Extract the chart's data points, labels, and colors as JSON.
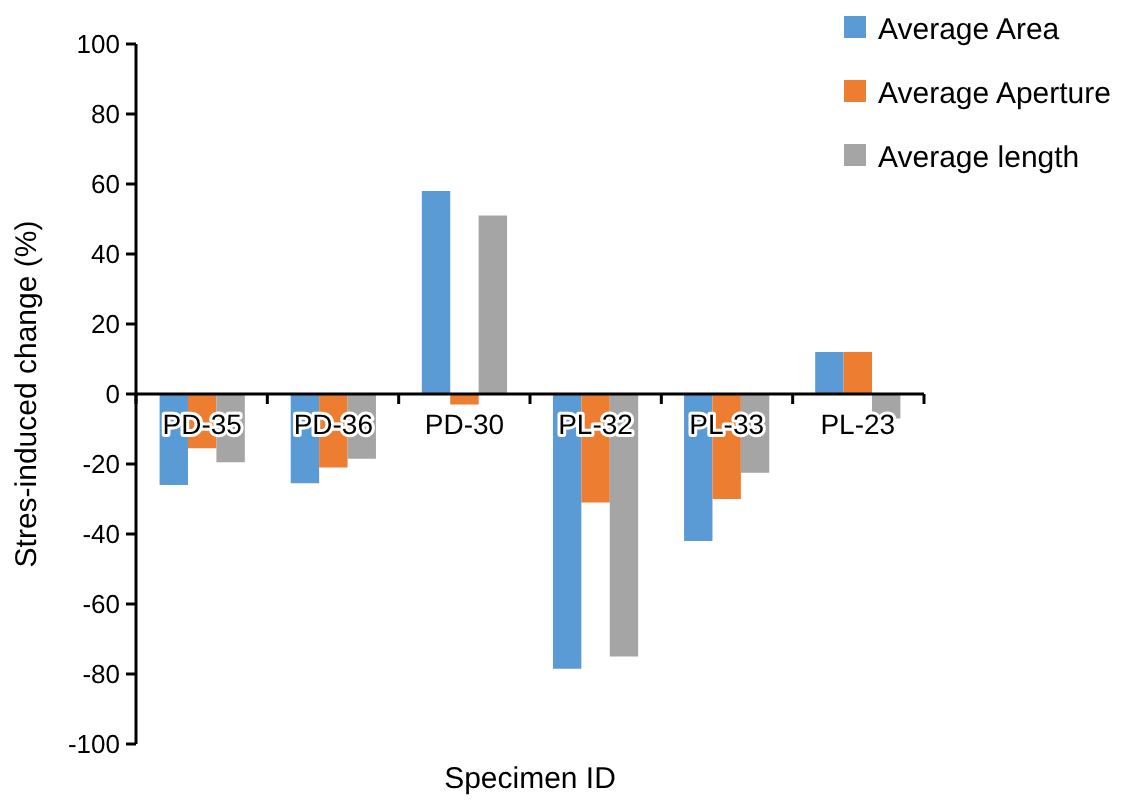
{
  "chart_data": {
    "type": "bar",
    "xlabel": "Specimen ID",
    "ylabel": "Stres-induced change (%)",
    "categories": [
      "PD-35",
      "PD-36",
      "PD-30",
      "PL-32",
      "PL-33",
      "PL-23"
    ],
    "series": [
      {
        "name": "Average Area",
        "color": "#5b9bd5",
        "values": [
          -26,
          -25.5,
          58,
          -78.5,
          -42,
          12
        ]
      },
      {
        "name": "Average Aperture",
        "color": "#ed7d31",
        "values": [
          -15.5,
          -21,
          -3,
          -31,
          -30,
          12
        ]
      },
      {
        "name": "Average length",
        "color": "#a5a5a5",
        "values": [
          -19.5,
          -18.5,
          51,
          -75,
          -22.5,
          -7
        ]
      }
    ],
    "ylim": [
      -100,
      100
    ],
    "yticks": [
      -100,
      -80,
      -60,
      -40,
      -20,
      0,
      20,
      40,
      60,
      80,
      100
    ],
    "grid": false,
    "legend": "top right"
  }
}
